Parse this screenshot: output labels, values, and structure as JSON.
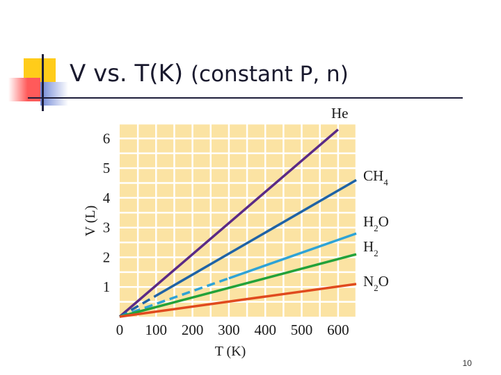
{
  "slide": {
    "title_main": "V vs. T(K)",
    "title_sub": "(constant P, n)",
    "page_number": "10"
  },
  "colors": {
    "plot_background": "#fbe3a3",
    "grid": "#ffffff",
    "accent_yellow": "#ffcc1a",
    "accent_red": "#ff5a5a",
    "accent_blue": "#6f86d6",
    "rule": "#1d1d3a"
  },
  "chart_data": {
    "type": "line",
    "xlabel": "T (K)",
    "ylabel": "V (L)",
    "xlim": [
      0,
      650
    ],
    "ylim": [
      0,
      6.5
    ],
    "x_ticks": [
      0,
      100,
      200,
      300,
      400,
      500,
      600
    ],
    "y_ticks": [
      1,
      2,
      3,
      4,
      5,
      6
    ],
    "grid": true,
    "legend": "right, labels at line ends",
    "series": [
      {
        "name": "He",
        "sub": "",
        "color": "#5b2a86",
        "points": [
          [
            0,
            0
          ],
          [
            600,
            6.3
          ]
        ],
        "dashed_to_x": 0
      },
      {
        "name": "CH",
        "sub": "4",
        "color": "#1f63a6",
        "points": [
          [
            0,
            0
          ],
          [
            650,
            4.6
          ]
        ],
        "dashed_to_x": 100
      },
      {
        "name": "H",
        "sub": "2",
        "color": "#2ea3d6",
        "points": [
          [
            0,
            0
          ],
          [
            650,
            2.8
          ]
        ],
        "dashed_to_x": 300,
        "label_suffix": "O"
      },
      {
        "name": "H",
        "sub": "2",
        "color": "#23a23a",
        "points": [
          [
            0,
            0
          ],
          [
            650,
            2.1
          ]
        ],
        "dashed_to_x": 0
      },
      {
        "name": "N",
        "sub": "2",
        "color": "#e04a1e",
        "points": [
          [
            0,
            0
          ],
          [
            650,
            1.1
          ]
        ],
        "dashed_to_x": 0,
        "label_suffix": "O"
      }
    ]
  }
}
